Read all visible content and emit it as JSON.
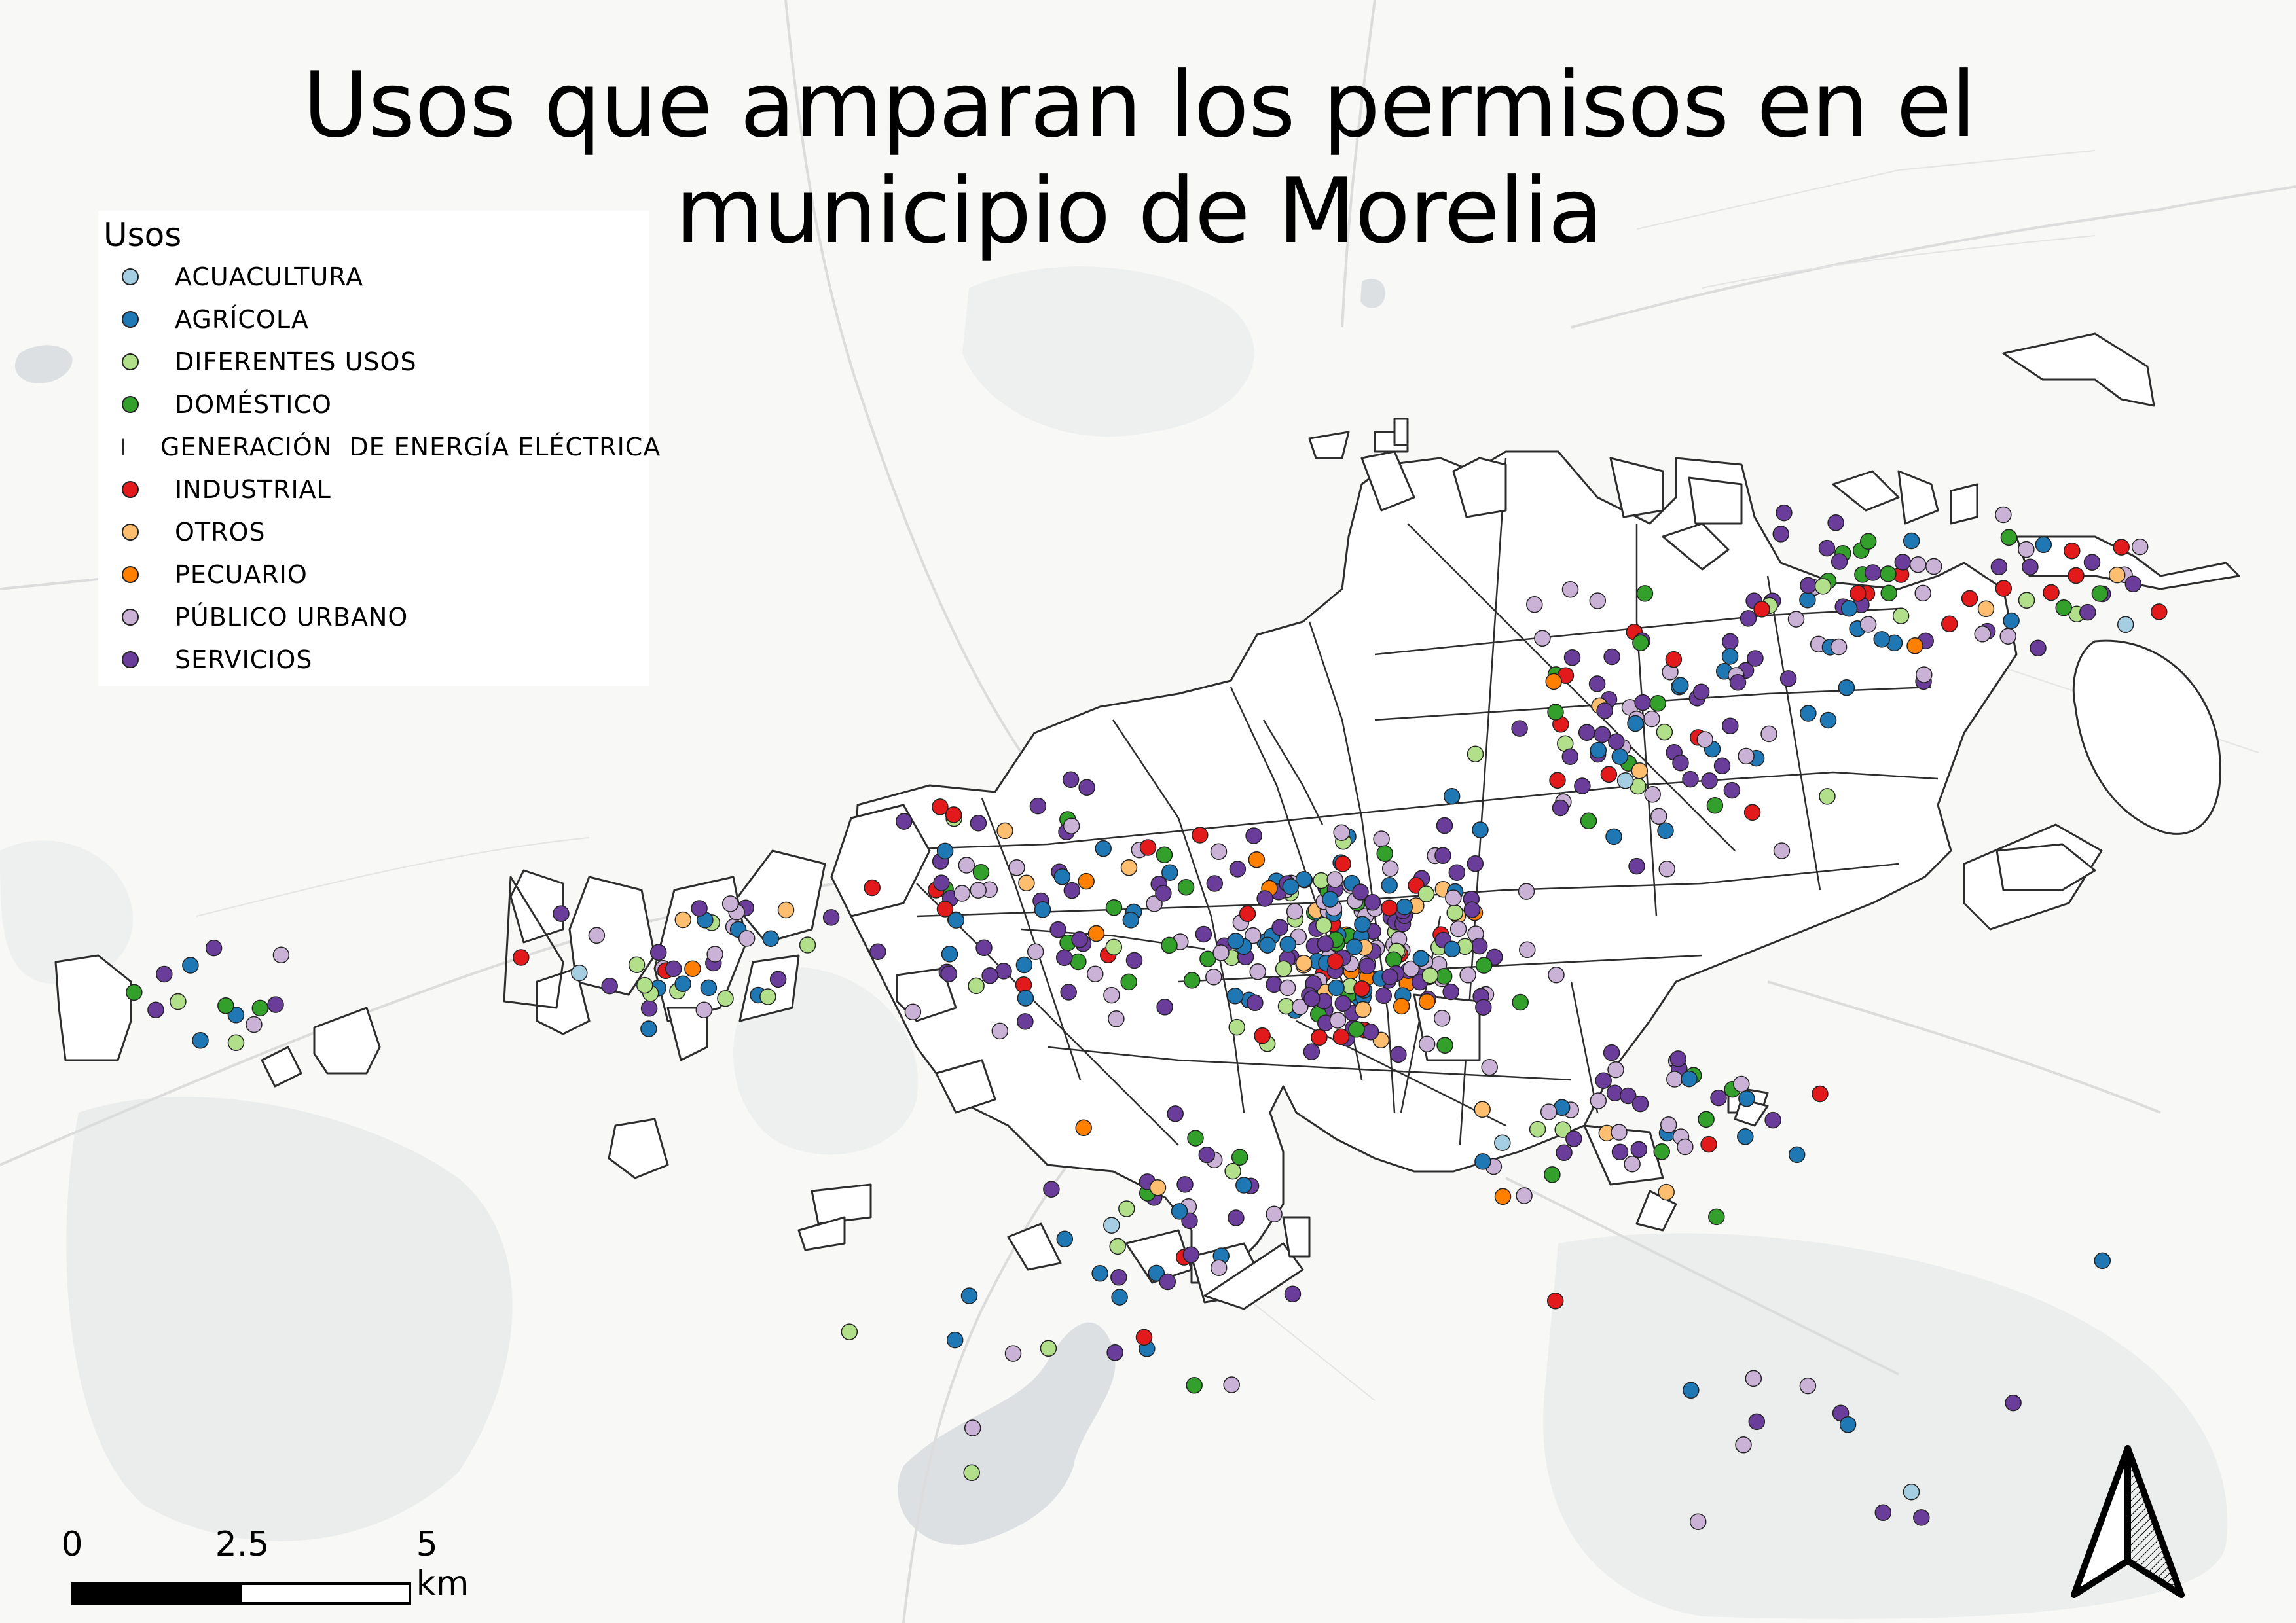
{
  "map": {
    "title": "Usos que amparan los permisos en el municipio de Morelia",
    "legend": {
      "title": "Usos",
      "items": [
        {
          "label": "ACUACULTURA",
          "color": "#a6cee3"
        },
        {
          "label": "AGRÍCOLA",
          "color": "#1f78b4"
        },
        {
          "label": "DIFERENTES USOS",
          "color": "#b2df8a"
        },
        {
          "label": "DOMÉSTICO",
          "color": "#33a02c"
        },
        {
          "label": "GENERACIÓN  DE ENERGÍA ELÉCTRICA",
          "color": "#fb9a99"
        },
        {
          "label": "INDUSTRIAL",
          "color": "#e31a1c"
        },
        {
          "label": "OTROS",
          "color": "#fdbf6f"
        },
        {
          "label": "PECUARIO",
          "color": "#ff7f00"
        },
        {
          "label": "PÚBLICO URBANO",
          "color": "#cab2d6"
        },
        {
          "label": "SERVICIOS",
          "color": "#6a3d9a"
        }
      ]
    },
    "scale_bar": {
      "labels": [
        "0",
        "2.5",
        "5 km"
      ]
    },
    "north_arrow": {
      "icon": "north-arrow-icon"
    },
    "basemap": {
      "background": "#f8f8f7",
      "forest": "#ebedec",
      "water": "#dde0e3",
      "roads": "#dcdcdc",
      "outline": "#2d2d2d"
    }
  }
}
